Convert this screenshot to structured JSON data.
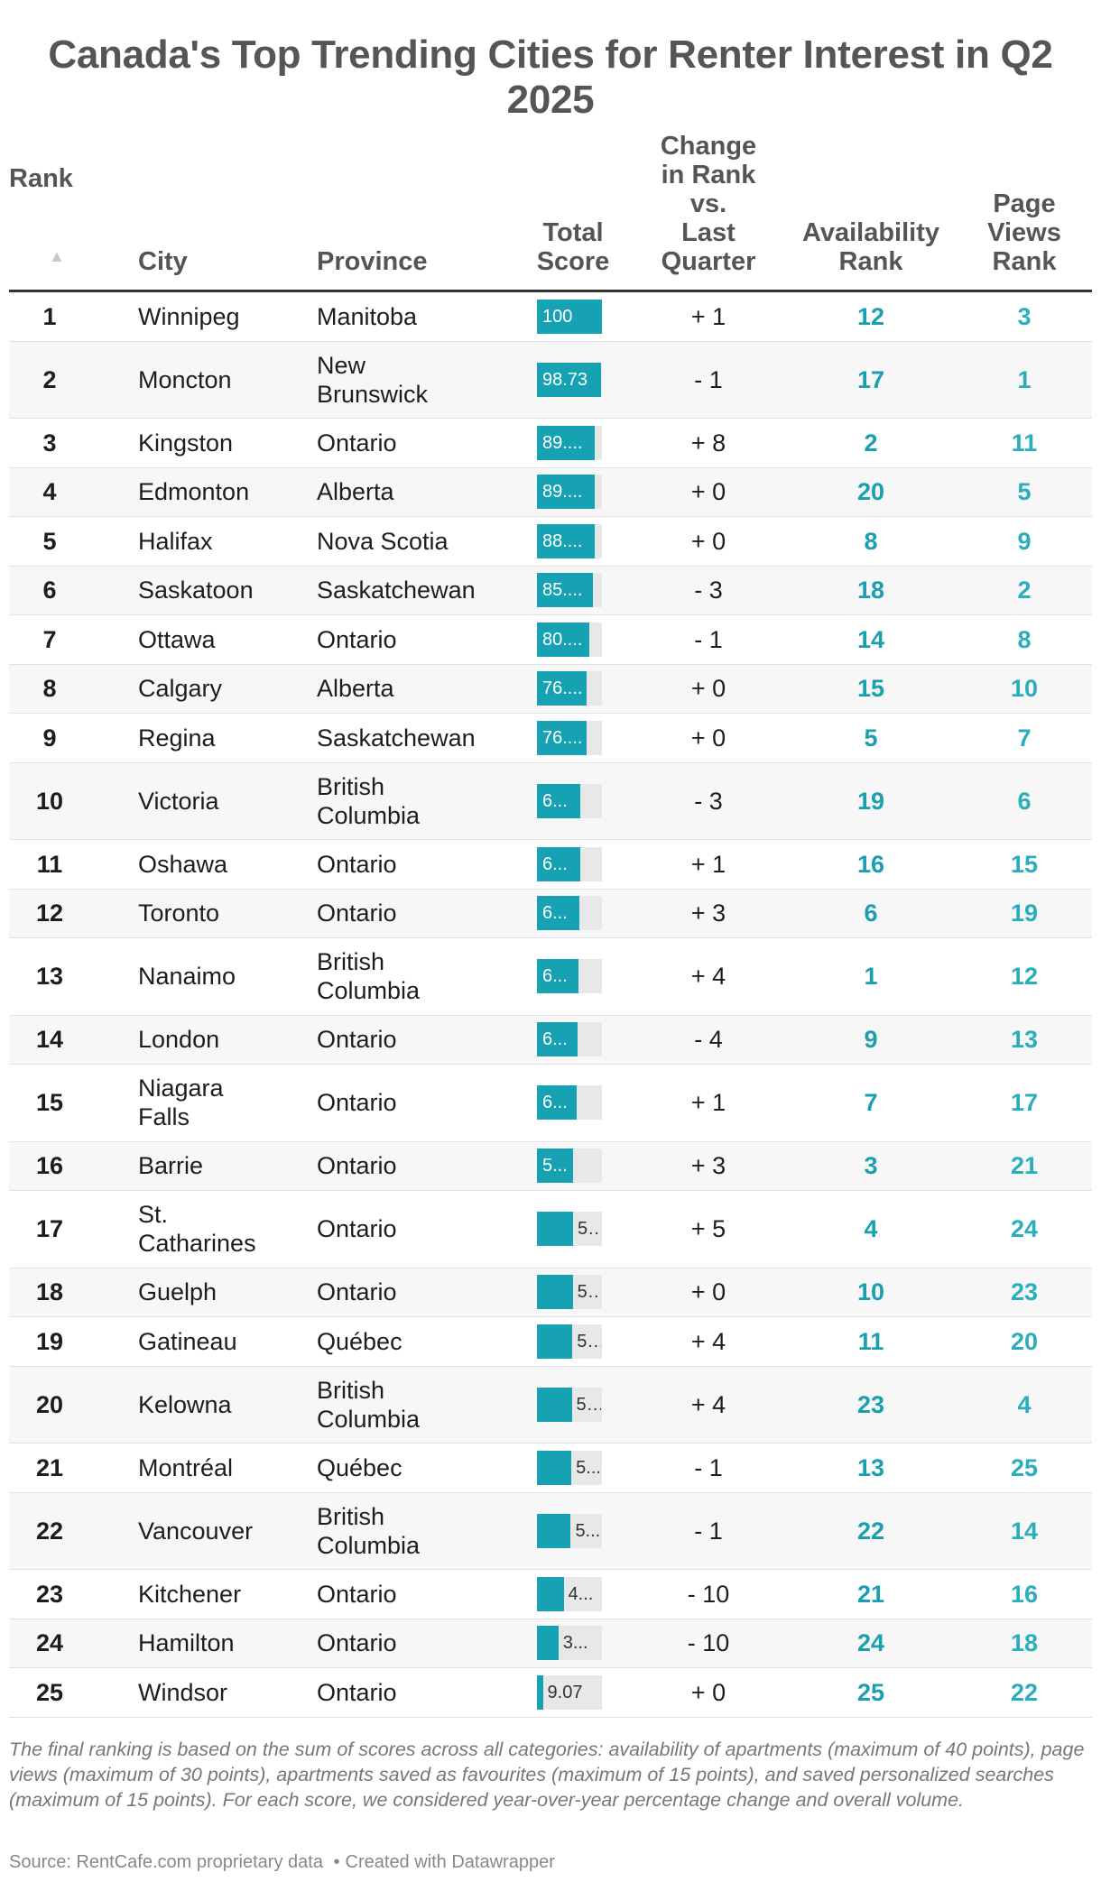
{
  "chart_data": {
    "type": "table",
    "title": "Canada's Top Trending Cities for Renter Interest in Q2 2025",
    "columns": [
      "Rank",
      "City",
      "Province",
      "Total\nScore",
      "Change\nin Rank\nvs.\nLast\nQuarter",
      "Availability\nRank",
      "Page\nViews\nRank"
    ],
    "sort_column": "Rank",
    "sort_direction": "ascending",
    "score_max": 100,
    "bar_color": "#17a2b3",
    "bar_track_color": "#e8e8e8",
    "rank_accent_color": "#1a9fb0",
    "rows": [
      {
        "rank": "1",
        "city": "Winnipeg",
        "province": "Manitoba",
        "score": 100,
        "score_label": "100",
        "change": "+ 1",
        "availability_rank": "12",
        "page_views_rank": "3"
      },
      {
        "rank": "2",
        "city": "Moncton",
        "province": "New\nBrunswick",
        "score": 98.73,
        "score_label": "98.73",
        "change": "- 1",
        "availability_rank": "17",
        "page_views_rank": "1"
      },
      {
        "rank": "3",
        "city": "Kingston",
        "province": "Ontario",
        "score": 89.5,
        "score_label": "89....",
        "change": "+ 8",
        "availability_rank": "2",
        "page_views_rank": "11"
      },
      {
        "rank": "4",
        "city": "Edmonton",
        "province": "Alberta",
        "score": 89.2,
        "score_label": "89....",
        "change": "+ 0",
        "availability_rank": "20",
        "page_views_rank": "5"
      },
      {
        "rank": "5",
        "city": "Halifax",
        "province": "Nova Scotia",
        "score": 88.5,
        "score_label": "88....",
        "change": "+ 0",
        "availability_rank": "8",
        "page_views_rank": "9"
      },
      {
        "rank": "6",
        "city": "Saskatoon",
        "province": "Saskatchewan",
        "score": 85.5,
        "score_label": "85....",
        "change": "- 3",
        "availability_rank": "18",
        "page_views_rank": "2"
      },
      {
        "rank": "7",
        "city": "Ottawa",
        "province": "Ontario",
        "score": 80.5,
        "score_label": "80....",
        "change": "- 1",
        "availability_rank": "14",
        "page_views_rank": "8"
      },
      {
        "rank": "8",
        "city": "Calgary",
        "province": "Alberta",
        "score": 76.5,
        "score_label": "76....",
        "change": "+ 0",
        "availability_rank": "15",
        "page_views_rank": "10"
      },
      {
        "rank": "9",
        "city": "Regina",
        "province": "Saskatchewan",
        "score": 76.0,
        "score_label": "76....",
        "change": "+ 0",
        "availability_rank": "5",
        "page_views_rank": "7"
      },
      {
        "rank": "10",
        "city": "Victoria",
        "province": "British\nColumbia",
        "score": 67,
        "score_label": "6...",
        "change": "- 3",
        "availability_rank": "19",
        "page_views_rank": "6"
      },
      {
        "rank": "11",
        "city": "Oshawa",
        "province": "Ontario",
        "score": 66,
        "score_label": "6...",
        "change": "+ 1",
        "availability_rank": "16",
        "page_views_rank": "15"
      },
      {
        "rank": "12",
        "city": "Toronto",
        "province": "Ontario",
        "score": 65.5,
        "score_label": "6...",
        "change": "+ 3",
        "availability_rank": "6",
        "page_views_rank": "19"
      },
      {
        "rank": "13",
        "city": "Nanaimo",
        "province": "British\nColumbia",
        "score": 64,
        "score_label": "6...",
        "change": "+ 4",
        "availability_rank": "1",
        "page_views_rank": "12"
      },
      {
        "rank": "14",
        "city": "London",
        "province": "Ontario",
        "score": 63,
        "score_label": "6...",
        "change": "- 4",
        "availability_rank": "9",
        "page_views_rank": "13"
      },
      {
        "rank": "15",
        "city": "Niagara\nFalls",
        "province": "Ontario",
        "score": 61,
        "score_label": "6...",
        "change": "+ 1",
        "availability_rank": "7",
        "page_views_rank": "17"
      },
      {
        "rank": "16",
        "city": "Barrie",
        "province": "Ontario",
        "score": 56,
        "score_label": "5...",
        "change": "+ 3",
        "availability_rank": "3",
        "page_views_rank": "21"
      },
      {
        "rank": "17",
        "city": "St.\nCatharines",
        "province": "Ontario",
        "score": 55.5,
        "score_label": "5...",
        "change": "+ 5",
        "availability_rank": "4",
        "page_views_rank": "24"
      },
      {
        "rank": "18",
        "city": "Guelph",
        "province": "Ontario",
        "score": 55,
        "score_label": "5...",
        "change": "+ 0",
        "availability_rank": "10",
        "page_views_rank": "23"
      },
      {
        "rank": "19",
        "city": "Gatineau",
        "province": "Québec",
        "score": 54.5,
        "score_label": "5...",
        "change": "+ 4",
        "availability_rank": "11",
        "page_views_rank": "20"
      },
      {
        "rank": "20",
        "city": "Kelowna",
        "province": "British\nColumbia",
        "score": 53.5,
        "score_label": "5...",
        "change": "+ 4",
        "availability_rank": "23",
        "page_views_rank": "4"
      },
      {
        "rank": "21",
        "city": "Montréal",
        "province": "Québec",
        "score": 53,
        "score_label": "5...",
        "change": "- 1",
        "availability_rank": "13",
        "page_views_rank": "25"
      },
      {
        "rank": "22",
        "city": "Vancouver",
        "province": "British\nColumbia",
        "score": 52,
        "score_label": "5...",
        "change": "- 1",
        "availability_rank": "22",
        "page_views_rank": "14"
      },
      {
        "rank": "23",
        "city": "Kitchener",
        "province": "Ontario",
        "score": 41,
        "score_label": "4...",
        "change": "- 10",
        "availability_rank": "21",
        "page_views_rank": "16"
      },
      {
        "rank": "24",
        "city": "Hamilton",
        "province": "Ontario",
        "score": 33,
        "score_label": "3...",
        "change": "- 10",
        "availability_rank": "24",
        "page_views_rank": "18"
      },
      {
        "rank": "25",
        "city": "Windsor",
        "province": "Ontario",
        "score": 9.07,
        "score_label": "9.07",
        "change": "+ 0",
        "availability_rank": "25",
        "page_views_rank": "22"
      }
    ]
  },
  "footnote": "The final ranking is based on the sum of scores across all categories: availability of apartments (maximum of 40 points), page views (maximum of 30 points), apartments saved as favourites (maximum of 15 points), and saved personalized searches (maximum of 15 points). For each score, we considered year-over-year percentage change and overall volume.",
  "source": {
    "text": "Source: RentCafe.com proprietary data",
    "credit": "Created with Datawrapper",
    "separator": "•"
  },
  "icons": {
    "sort": "sort-ascending-icon",
    "sort_glyph": "▲"
  }
}
